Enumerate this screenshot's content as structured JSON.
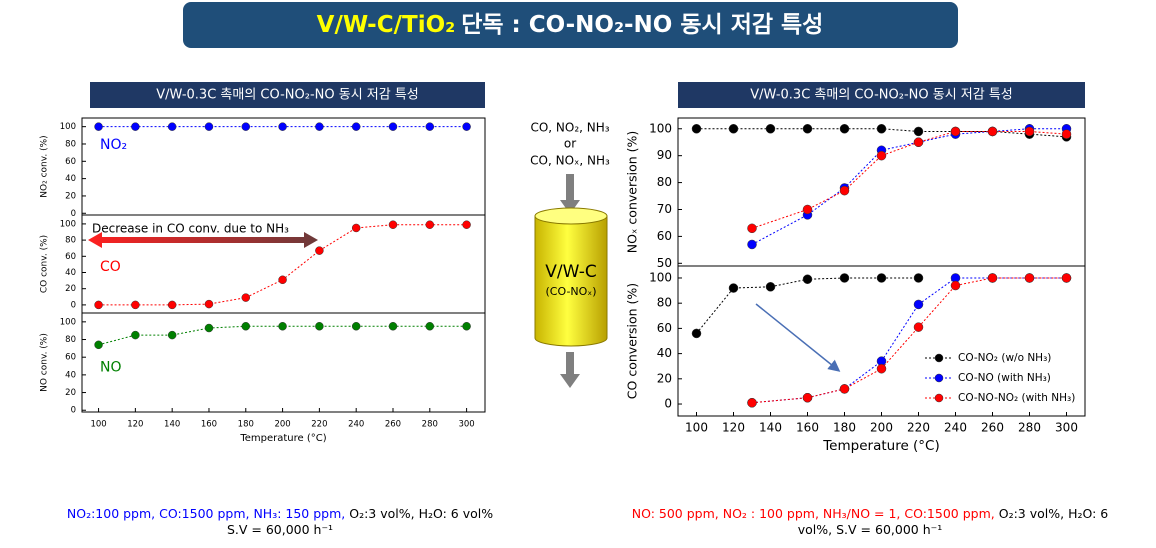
{
  "title_highlight": "V/W-C/TiO₂",
  "title_rest": "단독 : CO-NO₂-NO 동시 저감 특성",
  "diagram": {
    "feed_1": "CO, NO₂, NH₃",
    "feed_or": "or",
    "feed_2": "CO, NOₓ, NH₃",
    "reactor": "V/W-C",
    "reactor_sub": "(CO-NOₓ)"
  },
  "conditions": [
    {
      "lines": [
        [
          {
            "text": "NO₂:100 ppm, CO:1500 ppm, NH₃: 150 ppm,",
            "color": "#0000ff"
          },
          {
            "text": "O₂:3 vol%, H₂O: 6 vol%",
            "color": "#000000"
          }
        ],
        [
          {
            "text": "S.V = 60,000 h⁻¹",
            "color": "#000000"
          }
        ]
      ]
    },
    {
      "lines": [
        [
          {
            "text": "NO: 500 ppm, NO₂ : 100 ppm, NH₃/NO = 1, CO:1500 ppm,",
            "color": "#ff0000"
          },
          {
            "text": "O₂:3 vol%, H₂O: 6",
            "color": "#000000"
          }
        ],
        [
          {
            "text": "vol%, S.V = 60,000 h⁻¹",
            "color": "#000000"
          }
        ]
      ]
    }
  ],
  "chart_data": [
    {
      "type": "line",
      "title": "V/W-0.3C 촉매의 CO-NO₂-NO 동시 저감 특성",
      "ylabel": "NO₂ conv. (%)",
      "x": [
        100,
        120,
        140,
        160,
        180,
        200,
        220,
        240,
        260,
        280,
        300
      ],
      "xlim": [
        91,
        310
      ],
      "ylim": [
        -2,
        110
      ],
      "yticks": [
        0,
        20,
        40,
        60,
        80,
        100
      ],
      "series": [
        {
          "name": "NO₂",
          "color": "#0000ff",
          "values": [
            100,
            100,
            100,
            100,
            100,
            100,
            100,
            100,
            100,
            100,
            100
          ]
        }
      ]
    },
    {
      "type": "line",
      "ylabel": "CO conv. (%)",
      "annotation": "Decrease in CO conv. due to NH₃",
      "x": [
        100,
        120,
        140,
        160,
        180,
        200,
        220,
        240,
        260,
        280,
        300
      ],
      "xlim": [
        91,
        310
      ],
      "ylim": [
        -10,
        111
      ],
      "yticks": [
        0,
        20,
        40,
        60,
        80,
        100
      ],
      "series": [
        {
          "name": "CO",
          "color": "#ff0000",
          "values": [
            0,
            0,
            0,
            1,
            9,
            31,
            67,
            95,
            99,
            99,
            99
          ]
        }
      ]
    },
    {
      "type": "line",
      "ylabel": "NO conv. (%)",
      "xlabel": "Temperature (°C)",
      "x": [
        100,
        120,
        140,
        160,
        180,
        200,
        220,
        240,
        260,
        280,
        300
      ],
      "xlim": [
        91,
        310
      ],
      "ylim": [
        -2,
        110
      ],
      "yticks": [
        0,
        20,
        40,
        60,
        80,
        100
      ],
      "xticks": [
        100,
        120,
        140,
        160,
        180,
        200,
        220,
        240,
        260,
        280,
        300
      ],
      "series": [
        {
          "name": "NO",
          "color": "#008000",
          "values": [
            74,
            85,
            85,
            93,
            95,
            95,
            95,
            95,
            95,
            95,
            95
          ]
        }
      ]
    },
    {
      "type": "line",
      "title": "V/W-0.3C 촉매의 CO-NO₂-NO 동시 저감 특성",
      "ylabel": "NOₓ conversion (%)",
      "xlim": [
        90,
        310
      ],
      "ylim": [
        49,
        104
      ],
      "yticks": [
        50,
        60,
        70,
        80,
        90,
        100
      ],
      "series": [
        {
          "color": "#000000",
          "x": [
            100,
            120,
            140,
            160,
            180,
            200,
            220,
            240,
            260,
            280,
            300
          ],
          "values": [
            100,
            100,
            100,
            100,
            100,
            100,
            99,
            99,
            99,
            98,
            97
          ]
        },
        {
          "color": "#0000ff",
          "x": [
            130,
            160,
            180,
            200,
            220,
            240,
            260,
            280,
            300
          ],
          "values": [
            57,
            68,
            78,
            92,
            95,
            98,
            99,
            100,
            100
          ]
        },
        {
          "color": "#ff0000",
          "x": [
            130,
            160,
            180,
            200,
            220,
            240,
            260,
            280,
            300
          ],
          "values": [
            63,
            70,
            77,
            90,
            95,
            99,
            99,
            99,
            98
          ]
        }
      ]
    },
    {
      "type": "line",
      "ylabel": "CO conversion (%)",
      "xlabel": "Temperature (°C)",
      "legend": "lower right",
      "xlim": [
        90,
        310
      ],
      "ylim": [
        -9.5,
        109.5
      ],
      "yticks": [
        0,
        20,
        40,
        60,
        80,
        100
      ],
      "xticks": [
        100,
        120,
        140,
        160,
        180,
        200,
        220,
        240,
        260,
        280,
        300
      ],
      "series": [
        {
          "name": "CO-NO₂ (w/o NH₃)",
          "color": "#000000",
          "x": [
            100,
            120,
            140,
            160,
            180,
            200,
            220
          ],
          "values": [
            56,
            92,
            93,
            99,
            100,
            100,
            100
          ]
        },
        {
          "name": "CO-NO (with NH₃)",
          "color": "#0000ff",
          "x": [
            130,
            160,
            180,
            200,
            220,
            240,
            260,
            280,
            300
          ],
          "values": [
            1,
            5,
            12,
            34,
            79,
            100,
            100,
            100,
            100
          ]
        },
        {
          "name": "CO-NO-NO₂ (with NH₃)",
          "color": "#ff0000",
          "x": [
            130,
            160,
            180,
            200,
            220,
            240,
            260,
            280,
            300
          ],
          "values": [
            1,
            5,
            12,
            28,
            61,
            94,
            100,
            100,
            100
          ]
        }
      ]
    }
  ]
}
